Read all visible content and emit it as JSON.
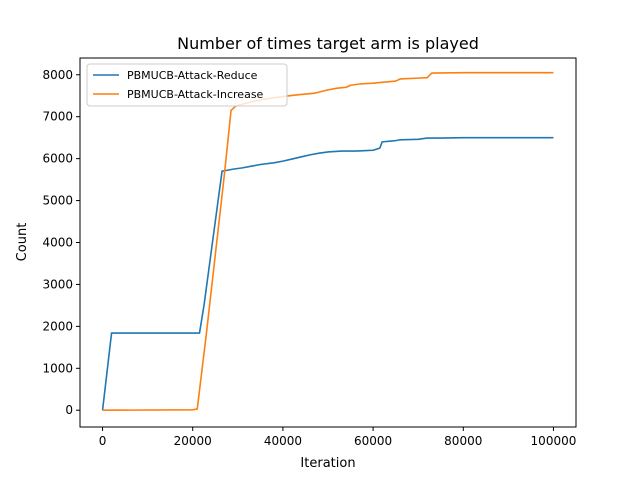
{
  "chart_data": {
    "type": "line",
    "title": "Number of times target arm is played",
    "xlabel": "Iteration",
    "ylabel": "Count",
    "xlim": [
      -5000,
      105000
    ],
    "ylim": [
      -400,
      8400
    ],
    "x_ticks": [
      0,
      20000,
      40000,
      60000,
      80000,
      100000
    ],
    "x_tick_labels": [
      "0",
      "20000",
      "40000",
      "60000",
      "80000",
      "100000"
    ],
    "y_ticks": [
      0,
      1000,
      2000,
      3000,
      4000,
      5000,
      6000,
      7000,
      8000
    ],
    "y_tick_labels": [
      "0",
      "1000",
      "2000",
      "3000",
      "4000",
      "5000",
      "6000",
      "7000",
      "8000"
    ],
    "grid": false,
    "legend_position": "top-left",
    "series": [
      {
        "name": "PBMUCB-Attack-Reduce",
        "color": "#1f77b4",
        "x": [
          0,
          2000,
          21500,
          22500,
          23500,
          24500,
          25500,
          26500,
          27500,
          29000,
          31000,
          33000,
          35000,
          38000,
          40000,
          42000,
          44000,
          46000,
          48000,
          50000,
          53000,
          56000,
          58000,
          60000,
          61500,
          62000,
          64000,
          65000,
          66000,
          70000,
          72000,
          75000,
          80000,
          90000,
          100000
        ],
        "y": [
          0,
          1840,
          1840,
          2500,
          3300,
          4100,
          4900,
          5700,
          5720,
          5750,
          5780,
          5820,
          5860,
          5900,
          5940,
          5990,
          6040,
          6090,
          6130,
          6160,
          6180,
          6180,
          6190,
          6200,
          6250,
          6400,
          6420,
          6430,
          6450,
          6460,
          6490,
          6490,
          6500,
          6500,
          6500
        ]
      },
      {
        "name": "PBMUCB-Attack-Increase",
        "color": "#ff7f0e",
        "x": [
          0,
          20000,
          21000,
          23000,
          25000,
          27000,
          28500,
          29500,
          31000,
          33000,
          35000,
          38000,
          40000,
          43000,
          45000,
          47000,
          50000,
          52000,
          54000,
          55000,
          57000,
          60000,
          63000,
          65000,
          66000,
          70000,
          72000,
          73000,
          80000,
          90000,
          100000
        ],
        "y": [
          0,
          10,
          30,
          1800,
          3700,
          5600,
          7150,
          7250,
          7300,
          7350,
          7400,
          7450,
          7480,
          7520,
          7540,
          7560,
          7640,
          7680,
          7700,
          7750,
          7780,
          7800,
          7830,
          7850,
          7900,
          7920,
          7930,
          8040,
          8050,
          8050,
          8050
        ]
      }
    ]
  }
}
